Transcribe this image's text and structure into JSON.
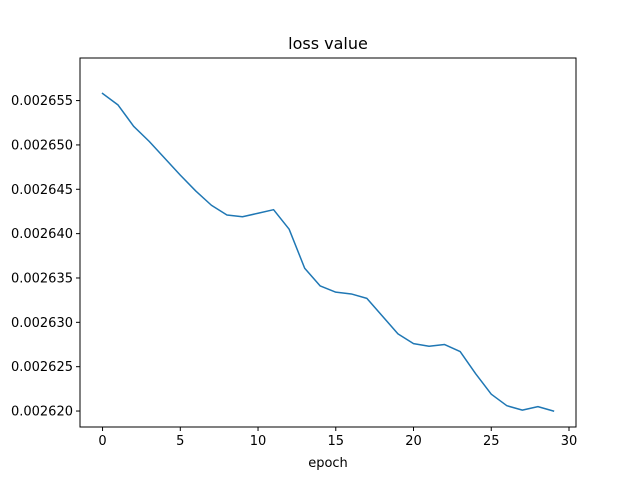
{
  "chart_data": {
    "type": "line",
    "title": "loss value",
    "xlabel": "epoch",
    "ylabel": "",
    "xlim": [
      -1.45,
      30.45
    ],
    "ylim": [
      0.0026182,
      0.0026598
    ],
    "xticks": [
      0,
      5,
      10,
      15,
      20,
      25,
      30
    ],
    "xtick_labels": [
      "0",
      "5",
      "10",
      "15",
      "20",
      "25",
      "30"
    ],
    "yticks": [
      0.00262,
      0.002625,
      0.00263,
      0.002635,
      0.00264,
      0.002645,
      0.00265,
      0.002655
    ],
    "ytick_labels": [
      "0.002620",
      "0.002625",
      "0.002630",
      "0.002635",
      "0.002640",
      "0.002645",
      "0.002650",
      "0.002655"
    ],
    "grid": false,
    "series": [
      {
        "color": "#1f77b4",
        "x": [
          0,
          1,
          2,
          3,
          4,
          5,
          6,
          7,
          8,
          9,
          10,
          11,
          12,
          13,
          14,
          15,
          16,
          17,
          18,
          19,
          20,
          21,
          22,
          23,
          24,
          25,
          26,
          27,
          28,
          29
        ],
        "y": [
          0.0026558,
          0.0026545,
          0.0026521,
          0.0026504,
          0.0026485,
          0.0026466,
          0.0026448,
          0.0026432,
          0.0026421,
          0.0026419,
          0.0026423,
          0.0026427,
          0.0026405,
          0.0026361,
          0.0026341,
          0.0026334,
          0.0026332,
          0.0026327,
          0.0026307,
          0.0026287,
          0.0026276,
          0.0026273,
          0.0026275,
          0.0026267,
          0.0026242,
          0.0026219,
          0.0026206,
          0.0026201,
          0.0026205,
          0.00262
        ]
      }
    ]
  }
}
